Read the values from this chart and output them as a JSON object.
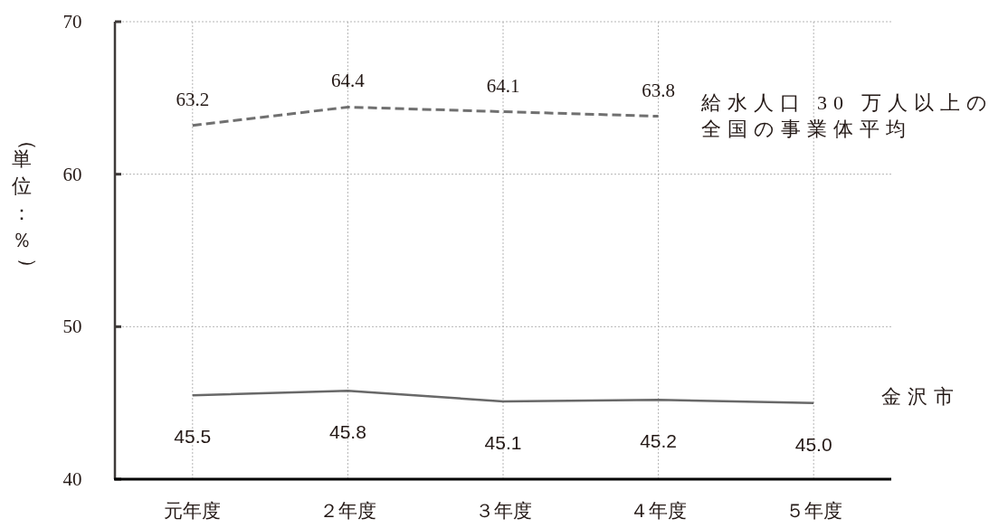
{
  "chart_data": {
    "type": "line",
    "categories": [
      "元年度",
      "２年度",
      "３年度",
      "４年度",
      "５年度"
    ],
    "ylabel": "（単位：％）",
    "ylim": [
      40,
      70
    ],
    "yticks": [
      40,
      50,
      60,
      70
    ],
    "grid": true,
    "marker": "none",
    "series": [
      {
        "name": "給水人口 30 万人以上の全国の事業体平均",
        "color": "#707070",
        "line_style": "dashed",
        "values": [
          63.2,
          64.4,
          64.1,
          63.8,
          null
        ],
        "value_labels": [
          "63.2",
          "64.4",
          "64.1",
          "63.8",
          null
        ]
      },
      {
        "name": "金沢市",
        "color": "#686868",
        "line_style": "solid",
        "values": [
          45.5,
          45.8,
          45.1,
          45.2,
          45.0
        ],
        "value_labels": [
          "45.5",
          "45.8",
          "45.1",
          "45.2",
          "45.0"
        ]
      }
    ]
  }
}
